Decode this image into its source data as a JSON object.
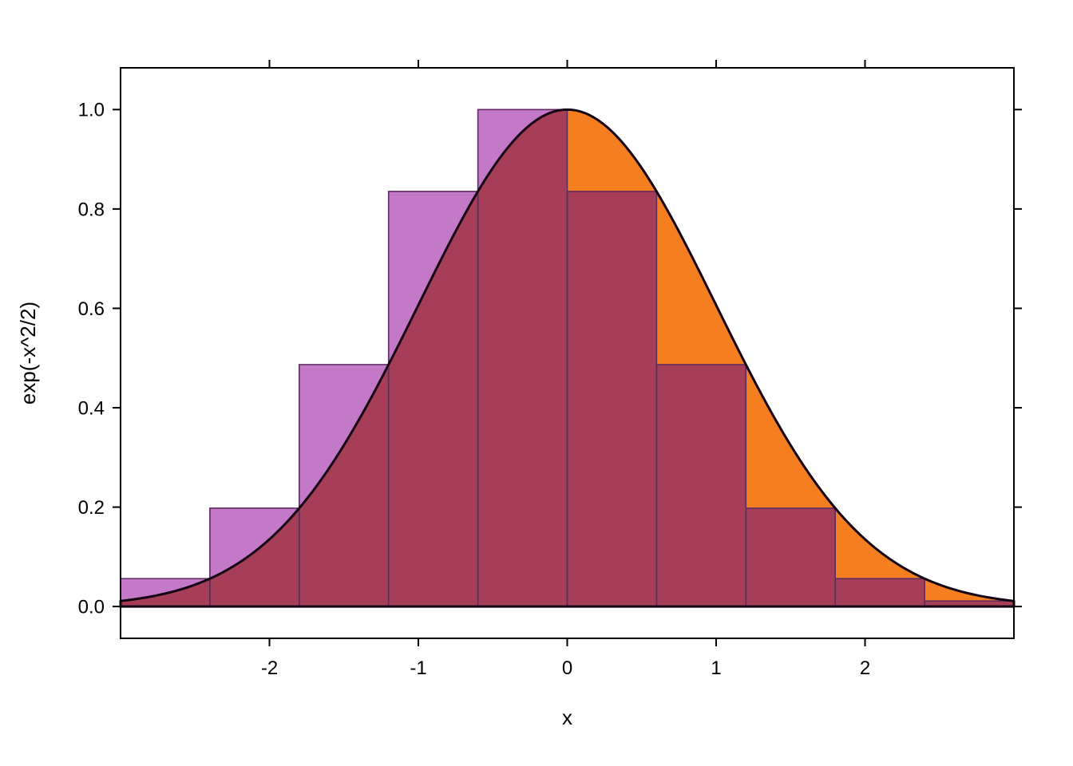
{
  "chart_data": {
    "type": "area",
    "title": "",
    "xlabel": "x",
    "ylabel": "exp(-x^2/2)",
    "xlim": [
      -3,
      3
    ],
    "ylim": [
      -0.064,
      1.084
    ],
    "grid": false,
    "legend": "none",
    "x_ticks": {
      "values": [
        -2,
        -1,
        0,
        1,
        2
      ],
      "labels": [
        "-2",
        "-1",
        "0",
        "1",
        "2"
      ]
    },
    "y_ticks": {
      "values": [
        0,
        0.2,
        0.4,
        0.6,
        0.8,
        1.0
      ],
      "labels": [
        "0.0",
        "0.2",
        "0.4",
        "0.6",
        "0.8",
        "1.0"
      ]
    },
    "curve": {
      "expression": "exp(-x^2/2)",
      "x_min": -3,
      "x_max": 3,
      "peak": [
        0,
        1.0
      ]
    },
    "riemann_bars": {
      "method": "right-endpoint",
      "bin_width": 0.6,
      "left_edges": [
        -3.0,
        -2.4,
        -1.8,
        -1.2,
        -0.6,
        0.0,
        0.6,
        1.2,
        1.8,
        2.4
      ],
      "heights": [
        0.0561,
        0.1979,
        0.4868,
        0.8353,
        1.0,
        0.8353,
        0.4868,
        0.1979,
        0.0561,
        0.0111
      ]
    },
    "colors": {
      "bar_fill": "#C478C8",
      "area_fill": "#F57F20",
      "overlap_fill": "#A53E56",
      "bar_border": "#5E2C63",
      "curve_line": "#140314",
      "axis": "#000000"
    }
  }
}
